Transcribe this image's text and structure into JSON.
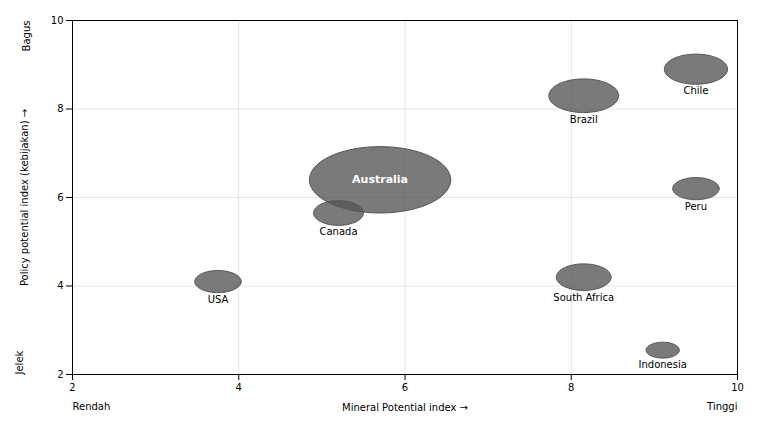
{
  "chart_data": {
    "type": "bubble",
    "labels": [
      "Australia",
      "Canada",
      "USA",
      "Brazil",
      "Chile",
      "Peru",
      "South Africa",
      "Indonesia"
    ],
    "x": [
      5.7,
      5.2,
      3.75,
      8.15,
      9.5,
      9.5,
      8.15,
      9.1
    ],
    "y": [
      6.4,
      5.65,
      4.1,
      8.3,
      8.9,
      6.2,
      4.2,
      2.55
    ],
    "x_radius": [
      0.85,
      0.3,
      0.28,
      0.42,
      0.38,
      0.28,
      0.33,
      0.2
    ],
    "y_radius": [
      0.75,
      0.28,
      0.25,
      0.38,
      0.34,
      0.25,
      0.3,
      0.18
    ],
    "color": "#555555",
    "xlim": [
      2,
      10
    ],
    "ylim": [
      2,
      10
    ],
    "xticks": [
      2,
      4,
      6,
      8,
      10
    ],
    "yticks": [
      2,
      4,
      6,
      8,
      10
    ],
    "xlabel": "Mineral Potential index",
    "ylabel": "Policy potential index (kebijakan)",
    "annotations": [
      "Rendah",
      "Tinggi",
      "Jelek",
      "Bagus"
    ],
    "grid": true
  }
}
